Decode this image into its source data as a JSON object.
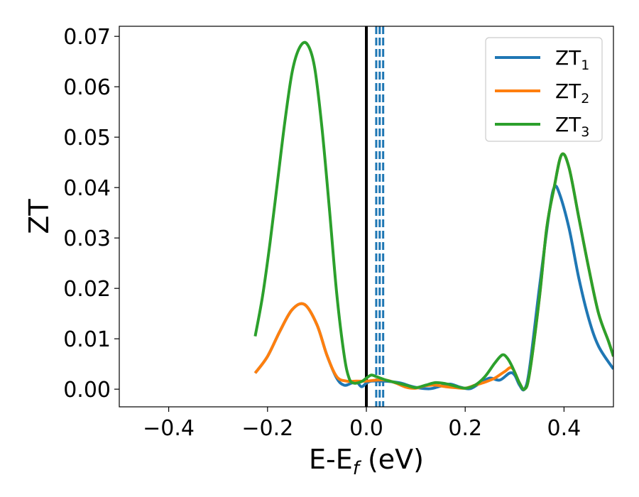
{
  "chart_data": {
    "type": "line",
    "title": "",
    "xlabel": {
      "main": "E-E",
      "sub": "f",
      "unit": " (eV)"
    },
    "ylabel": "ZT",
    "xlim": [
      -0.5,
      0.5
    ],
    "ylim": [
      -0.0035,
      0.072
    ],
    "xticks": [
      -0.4,
      -0.2,
      0.0,
      0.2,
      0.4
    ],
    "xtick_labels": [
      "−0.4",
      "−0.2",
      "0.0",
      "0.2",
      "0.4"
    ],
    "yticks": [
      0.0,
      0.01,
      0.02,
      0.03,
      0.04,
      0.05,
      0.06,
      0.07
    ],
    "ytick_labels": [
      "0.00",
      "0.01",
      "0.02",
      "0.03",
      "0.04",
      "0.05",
      "0.06",
      "0.07"
    ],
    "grid": false,
    "legend_position": "top-right",
    "vertical_lines": [
      {
        "x": 0.0,
        "style": "solid",
        "color": "#000000"
      },
      {
        "x": 0.02,
        "style": "dashed",
        "color": "#1f77b4"
      },
      {
        "x": 0.027,
        "style": "dashed",
        "color": "#1f77b4"
      },
      {
        "x": 0.034,
        "style": "dashed",
        "color": "#1f77b4"
      }
    ],
    "series": [
      {
        "name": "ZT",
        "name_sub": "1",
        "color": "#1f77b4",
        "points": [
          [
            -0.225,
            0.0032
          ],
          [
            -0.2,
            0.0065
          ],
          [
            -0.175,
            0.0115
          ],
          [
            -0.15,
            0.0158
          ],
          [
            -0.125,
            0.0168
          ],
          [
            -0.1,
            0.0128
          ],
          [
            -0.08,
            0.0068
          ],
          [
            -0.06,
            0.0022
          ],
          [
            -0.045,
            0.0008
          ],
          [
            -0.03,
            0.0012
          ],
          [
            -0.02,
            0.0015
          ],
          [
            -0.01,
            0.0005
          ],
          [
            0.0,
            0.0012
          ],
          [
            0.01,
            0.0016
          ],
          [
            0.03,
            0.0016
          ],
          [
            0.05,
            0.0015
          ],
          [
            0.07,
            0.0012
          ],
          [
            0.09,
            0.0006
          ],
          [
            0.11,
            0.0002
          ],
          [
            0.13,
            0.0001
          ],
          [
            0.15,
            0.0006
          ],
          [
            0.17,
            0.001
          ],
          [
            0.19,
            0.0004
          ],
          [
            0.21,
            0.0001
          ],
          [
            0.23,
            0.0012
          ],
          [
            0.25,
            0.0022
          ],
          [
            0.27,
            0.0018
          ],
          [
            0.29,
            0.0032
          ],
          [
            0.3,
            0.0028
          ],
          [
            0.31,
            0.0008
          ],
          [
            0.32,
            0.0
          ],
          [
            0.33,
            0.004
          ],
          [
            0.35,
            0.02
          ],
          [
            0.37,
            0.035
          ],
          [
            0.38,
            0.04
          ],
          [
            0.39,
            0.039
          ],
          [
            0.41,
            0.032
          ],
          [
            0.43,
            0.022
          ],
          [
            0.45,
            0.014
          ],
          [
            0.47,
            0.0085
          ],
          [
            0.5,
            0.004
          ]
        ]
      },
      {
        "name": "ZT",
        "name_sub": "2",
        "color": "#ff7f0e",
        "points": [
          [
            -0.225,
            0.0032
          ],
          [
            -0.2,
            0.0065
          ],
          [
            -0.175,
            0.0115
          ],
          [
            -0.15,
            0.0158
          ],
          [
            -0.125,
            0.0168
          ],
          [
            -0.1,
            0.0128
          ],
          [
            -0.08,
            0.0068
          ],
          [
            -0.06,
            0.0025
          ],
          [
            -0.04,
            0.0016
          ],
          [
            -0.02,
            0.0016
          ],
          [
            0.0,
            0.0016
          ],
          [
            0.02,
            0.0018
          ],
          [
            0.04,
            0.0018
          ],
          [
            0.06,
            0.0012
          ],
          [
            0.08,
            0.0004
          ],
          [
            0.1,
            0.0002
          ],
          [
            0.12,
            0.0007
          ],
          [
            0.14,
            0.0008
          ],
          [
            0.16,
            0.0005
          ],
          [
            0.18,
            0.0003
          ],
          [
            0.2,
            0.0002
          ],
          [
            0.22,
            0.0008
          ],
          [
            0.24,
            0.0014
          ],
          [
            0.26,
            0.0022
          ],
          [
            0.28,
            0.0035
          ],
          [
            0.295,
            0.0042
          ],
          [
            0.31,
            0.0012
          ],
          [
            0.32,
            0.0
          ],
          [
            0.33,
            0.003
          ],
          [
            0.35,
            0.018
          ],
          [
            0.365,
            0.032
          ],
          [
            0.38,
            0.04
          ],
          [
            0.395,
            0.0465
          ],
          [
            0.41,
            0.044
          ],
          [
            0.43,
            0.034
          ],
          [
            0.45,
            0.024
          ],
          [
            0.47,
            0.015
          ],
          [
            0.49,
            0.0095
          ],
          [
            0.5,
            0.0065
          ]
        ]
      },
      {
        "name": "ZT",
        "name_sub": "3",
        "color": "#2ca02c",
        "points": [
          [
            -0.225,
            0.0105
          ],
          [
            -0.21,
            0.0185
          ],
          [
            -0.195,
            0.029
          ],
          [
            -0.18,
            0.041
          ],
          [
            -0.165,
            0.053
          ],
          [
            -0.15,
            0.063
          ],
          [
            -0.135,
            0.0678
          ],
          [
            -0.12,
            0.0685
          ],
          [
            -0.105,
            0.064
          ],
          [
            -0.09,
            0.052
          ],
          [
            -0.075,
            0.036
          ],
          [
            -0.06,
            0.019
          ],
          [
            -0.045,
            0.0068
          ],
          [
            -0.035,
            0.0022
          ],
          [
            -0.025,
            0.0012
          ],
          [
            -0.01,
            0.0015
          ],
          [
            0.0,
            0.0022
          ],
          [
            0.01,
            0.0028
          ],
          [
            0.02,
            0.0025
          ],
          [
            0.04,
            0.0018
          ],
          [
            0.06,
            0.0013
          ],
          [
            0.08,
            0.0008
          ],
          [
            0.1,
            0.0003
          ],
          [
            0.12,
            0.0008
          ],
          [
            0.14,
            0.0013
          ],
          [
            0.16,
            0.0011
          ],
          [
            0.18,
            0.0006
          ],
          [
            0.2,
            0.0002
          ],
          [
            0.22,
            0.0008
          ],
          [
            0.24,
            0.0025
          ],
          [
            0.26,
            0.0052
          ],
          [
            0.275,
            0.0068
          ],
          [
            0.285,
            0.0062
          ],
          [
            0.295,
            0.0045
          ],
          [
            0.31,
            0.0012
          ],
          [
            0.32,
            0.0
          ],
          [
            0.33,
            0.003
          ],
          [
            0.35,
            0.018
          ],
          [
            0.365,
            0.032
          ],
          [
            0.38,
            0.04
          ],
          [
            0.395,
            0.0465
          ],
          [
            0.41,
            0.044
          ],
          [
            0.43,
            0.034
          ],
          [
            0.45,
            0.024
          ],
          [
            0.47,
            0.015
          ],
          [
            0.49,
            0.0095
          ],
          [
            0.5,
            0.0065
          ]
        ]
      }
    ]
  }
}
